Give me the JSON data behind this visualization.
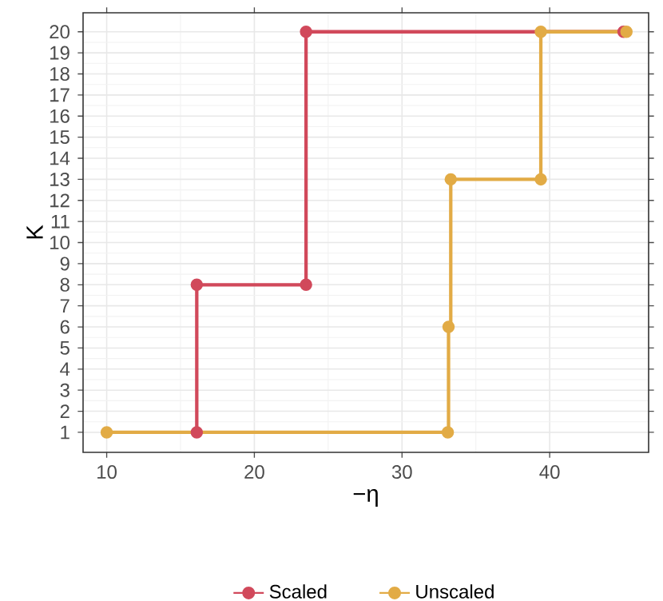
{
  "chart_data": {
    "type": "step",
    "xlabel": "−η",
    "ylabel": "K",
    "xlim": [
      8.4,
      46.7
    ],
    "ylim": [
      0.05,
      20.9
    ],
    "xticks": [
      10,
      20,
      30,
      40
    ],
    "yticks": [
      1,
      2,
      3,
      4,
      5,
      6,
      7,
      8,
      9,
      10,
      11,
      12,
      13,
      14,
      15,
      16,
      17,
      18,
      19,
      20
    ],
    "grid": true,
    "legend": "bottom",
    "marker": "circle",
    "series": [
      {
        "name": "Scaled",
        "color": "#d1495b",
        "x": [
          16.1,
          16.1,
          23.5,
          23.5,
          45
        ],
        "values": [
          1,
          8,
          8,
          20,
          20
        ]
      },
      {
        "name": "Unscaled",
        "color": "#e2ab45",
        "x": [
          10,
          33.1,
          33.15,
          33.3,
          39.4,
          39.4,
          45.2
        ],
        "values": [
          1,
          1,
          6,
          13,
          13,
          20,
          20
        ]
      }
    ]
  }
}
